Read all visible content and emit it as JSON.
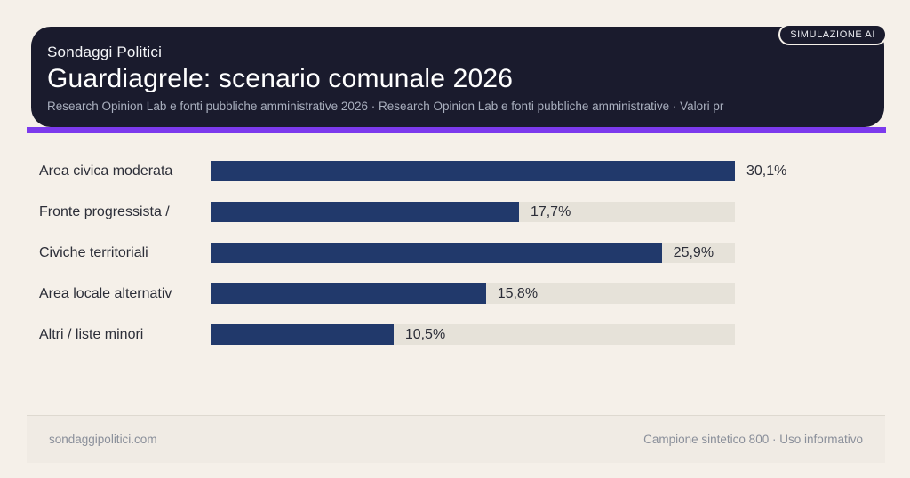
{
  "badge": {
    "label": "SIMULAZIONE AI"
  },
  "header": {
    "kicker": "Sondaggi Politici",
    "title": "Guardiagrele: scenario comunale 2026",
    "subtitle": "Research Opinion Lab e fonti pubbliche amministrative 2026 · Research Opinion Lab e fonti pubbliche amministrative · Valori pr",
    "background": "#1a1b2d",
    "accent_color": "#7c3aed"
  },
  "chart_data": {
    "type": "bar",
    "orientation": "horizontal",
    "categories": [
      "Area civica moderata",
      "Fronte progressista /",
      "Civiche territoriali",
      "Area locale alternativ",
      "Altri / liste minori"
    ],
    "values": [
      30.1,
      17.7,
      25.9,
      15.8,
      10.5
    ],
    "value_labels": [
      "30,1%",
      "17,7%",
      "25,9%",
      "15,8%",
      "10,5%"
    ],
    "title": "Guardiagrele: scenario comunale 2026",
    "xlabel": "",
    "ylabel": "",
    "scale_max": 30.1,
    "bar_color": "#21396b",
    "track_color": "#e6e2d9",
    "grid": false,
    "legend": false
  },
  "footer": {
    "left": "sondaggipolitici.com",
    "right": "Campione sintetico 800 · Uso informativo"
  }
}
